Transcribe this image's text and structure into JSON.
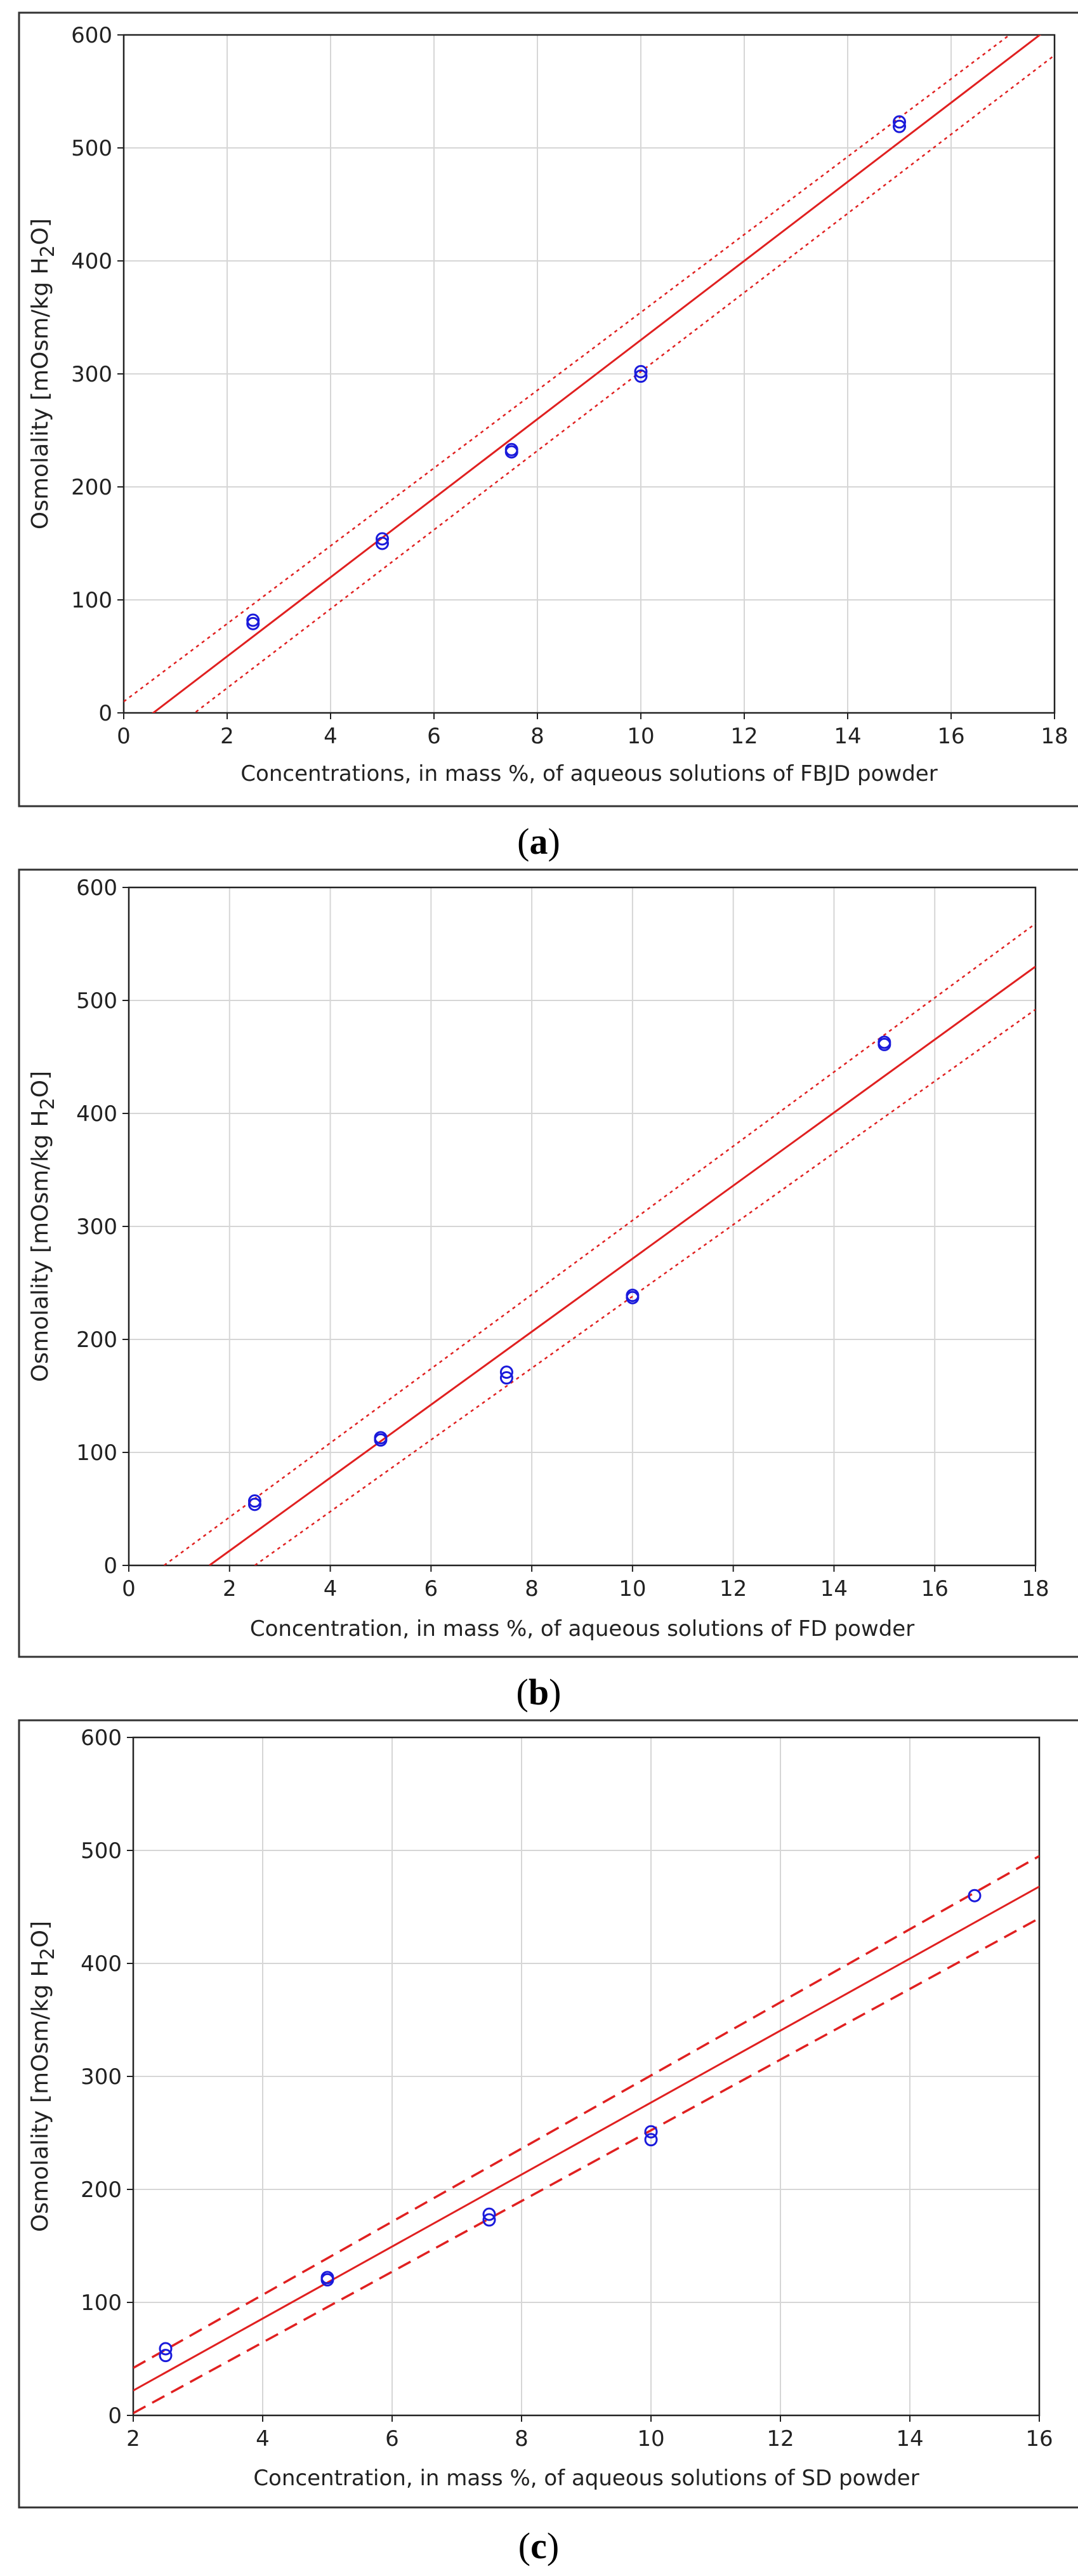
{
  "chart_data": [
    {
      "type": "scatter",
      "panel_label": "a",
      "xlabel": "Concentrations, in mass %, of aqueous solutions of FBJD powder",
      "ylabel_main": "Osmolality [mOsm/kg H",
      "ylabel_sub": "2",
      "ylabel_end": "O]",
      "xlim": [
        0,
        18
      ],
      "ylim": [
        0,
        600
      ],
      "xticks": [
        0,
        2,
        4,
        6,
        8,
        10,
        12,
        14,
        16,
        18
      ],
      "yticks": [
        0,
        100,
        200,
        300,
        400,
        500,
        600
      ],
      "grid": true,
      "points": {
        "x": [
          2.5,
          2.5,
          5,
          5,
          7.5,
          7.5,
          10,
          10,
          15,
          15
        ],
        "y": [
          79,
          82,
          150,
          154,
          231,
          233,
          298,
          302,
          519,
          523
        ]
      },
      "fit_line": {
        "x0": 0,
        "y0": -20,
        "x1": 18,
        "y1": 610
      },
      "upper_band": {
        "x0": 0,
        "y0": 10,
        "x1": 18,
        "y1": 630
      },
      "lower_band": {
        "x0": 0,
        "y0": -48,
        "x1": 18,
        "y1": 582
      },
      "band_style": "dotted",
      "point_color": "#1a1adb",
      "line_color": "#e02020"
    },
    {
      "type": "scatter",
      "panel_label": "b",
      "xlabel": "Concentration, in mass %, of aqueous solutions of FD powder",
      "ylabel_main": "Osmolality [mOsm/kg H",
      "ylabel_sub": "2",
      "ylabel_end": "O]",
      "xlim": [
        0,
        18
      ],
      "ylim": [
        0,
        600
      ],
      "xticks": [
        0,
        2,
        4,
        6,
        8,
        10,
        12,
        14,
        16,
        18
      ],
      "yticks": [
        0,
        100,
        200,
        300,
        400,
        500,
        600
      ],
      "grid": true,
      "points": {
        "x": [
          2.5,
          2.5,
          5,
          5,
          7.5,
          7.5,
          10,
          10,
          15,
          15
        ],
        "y": [
          54,
          57,
          111,
          113,
          166,
          171,
          237,
          239,
          461,
          463
        ]
      },
      "fit_line": {
        "x0": 1.6,
        "y0": 0,
        "x1": 18,
        "y1": 530
      },
      "upper_band": {
        "x0": 0.7,
        "y0": 0,
        "x1": 18,
        "y1": 568
      },
      "lower_band": {
        "x0": 2.5,
        "y0": 0,
        "x1": 18,
        "y1": 492
      },
      "band_style": "dotted",
      "point_color": "#1a1adb",
      "line_color": "#e02020"
    },
    {
      "type": "scatter",
      "panel_label": "c",
      "xlabel": "Concentration, in mass %, of aqueous solutions of SD powder",
      "ylabel_main": "Osmolality [mOsm/kg H",
      "ylabel_sub": "2",
      "ylabel_end": "O]",
      "xlim": [
        2,
        16
      ],
      "ylim": [
        0,
        600
      ],
      "xticks": [
        2,
        4,
        6,
        8,
        10,
        12,
        14,
        16
      ],
      "yticks": [
        0,
        100,
        200,
        300,
        400,
        500,
        600
      ],
      "grid": true,
      "points": {
        "x": [
          2.5,
          2.5,
          5,
          5,
          7.5,
          7.5,
          10,
          10,
          15
        ],
        "y": [
          53,
          59,
          120,
          122,
          173,
          178,
          244,
          251,
          460
        ]
      },
      "fit_line": {
        "x0": 2,
        "y0": 22,
        "x1": 16,
        "y1": 468
      },
      "upper_band": {
        "x0": 2,
        "y0": 42,
        "x1": 16,
        "y1": 495
      },
      "lower_band": {
        "x0": 2,
        "y0": 2,
        "x1": 16,
        "y1": 440
      },
      "band_style": "dashed",
      "point_color": "#1a1adb",
      "line_color": "#e02020"
    }
  ],
  "captions": {
    "a": {
      "open": "(",
      "letter": "a",
      "close": ")"
    },
    "b": {
      "open": "(",
      "letter": "b",
      "close": ")"
    },
    "c": {
      "open": "(",
      "letter": "c",
      "close": ")"
    }
  }
}
